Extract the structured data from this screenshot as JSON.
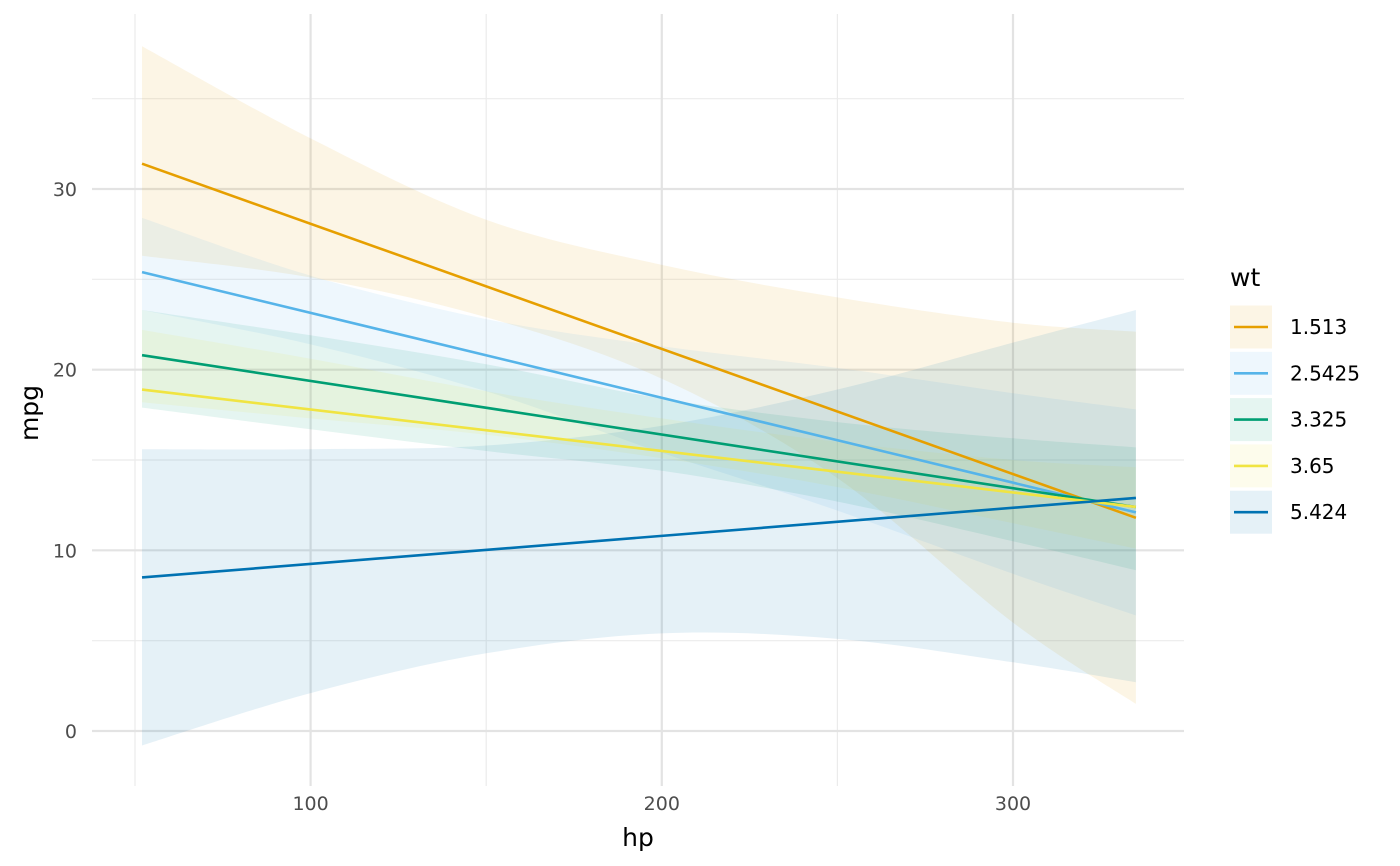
{
  "chart_data": {
    "type": "line",
    "title": "",
    "xlabel": "hp",
    "ylabel": "mpg",
    "xlim": [
      38,
      349
    ],
    "ylim": [
      -2.4,
      39.5
    ],
    "x_ticks": [
      100,
      200,
      300
    ],
    "x_tick_labels": [
      "100",
      "200",
      "300"
    ],
    "y_ticks": [
      0,
      10,
      20,
      30
    ],
    "y_tick_labels": [
      "0",
      "10",
      "20",
      "30"
    ],
    "grid": true,
    "legend": {
      "title": "wt",
      "position": "right"
    },
    "x": [
      52,
      100,
      150,
      200,
      250,
      300,
      335
    ],
    "series": [
      {
        "name": "1.513",
        "color": "#E69F00",
        "fill": "#E69F00",
        "line": [
          31.4,
          28.0,
          24.6,
          21.2,
          17.8,
          14.4,
          11.8
        ],
        "lower": [
          26.3,
          25.1,
          22.9,
          19.5,
          14.0,
          6.0,
          1.5
        ],
        "upper": [
          37.9,
          32.8,
          28.3,
          25.8,
          24.0,
          22.6,
          22.1
        ]
      },
      {
        "name": "2.5425",
        "color": "#56B4E9",
        "fill": "#56B4E9",
        "line": [
          25.4,
          23.1,
          20.8,
          18.4,
          16.1,
          13.7,
          12.1
        ],
        "lower": [
          23.3,
          21.4,
          18.8,
          15.4,
          12.2,
          8.7,
          6.4
        ],
        "upper": [
          28.4,
          25.2,
          22.8,
          21.3,
          20.1,
          18.7,
          17.8
        ]
      },
      {
        "name": "3.325",
        "color": "#009E73",
        "fill": "#009E73",
        "line": [
          20.8,
          19.4,
          17.9,
          16.4,
          14.9,
          13.4,
          12.4
        ],
        "lower": [
          17.9,
          16.7,
          15.5,
          14.4,
          12.7,
          10.5,
          8.9
        ],
        "upper": [
          23.3,
          21.9,
          20.3,
          18.4,
          17.1,
          16.2,
          15.7
        ]
      },
      {
        "name": "3.65",
        "color": "#F0E442",
        "fill": "#F0E442",
        "line": [
          18.9,
          17.8,
          16.7,
          15.5,
          14.4,
          13.2,
          12.4
        ],
        "lower": [
          18.2,
          17.3,
          16.4,
          15.1,
          13.5,
          11.5,
          10.1
        ],
        "upper": [
          22.2,
          20.6,
          18.8,
          17.3,
          16.0,
          15.0,
          14.6
        ]
      },
      {
        "name": "5.424",
        "color": "#0072B2",
        "fill": "#0072B2",
        "line": [
          8.5,
          9.3,
          10.0,
          10.8,
          11.6,
          12.4,
          12.9
        ],
        "lower": [
          -0.8,
          2.1,
          4.3,
          5.4,
          5.1,
          3.8,
          2.7
        ],
        "upper": [
          15.6,
          15.6,
          15.8,
          16.9,
          18.9,
          21.5,
          23.3
        ]
      }
    ]
  }
}
